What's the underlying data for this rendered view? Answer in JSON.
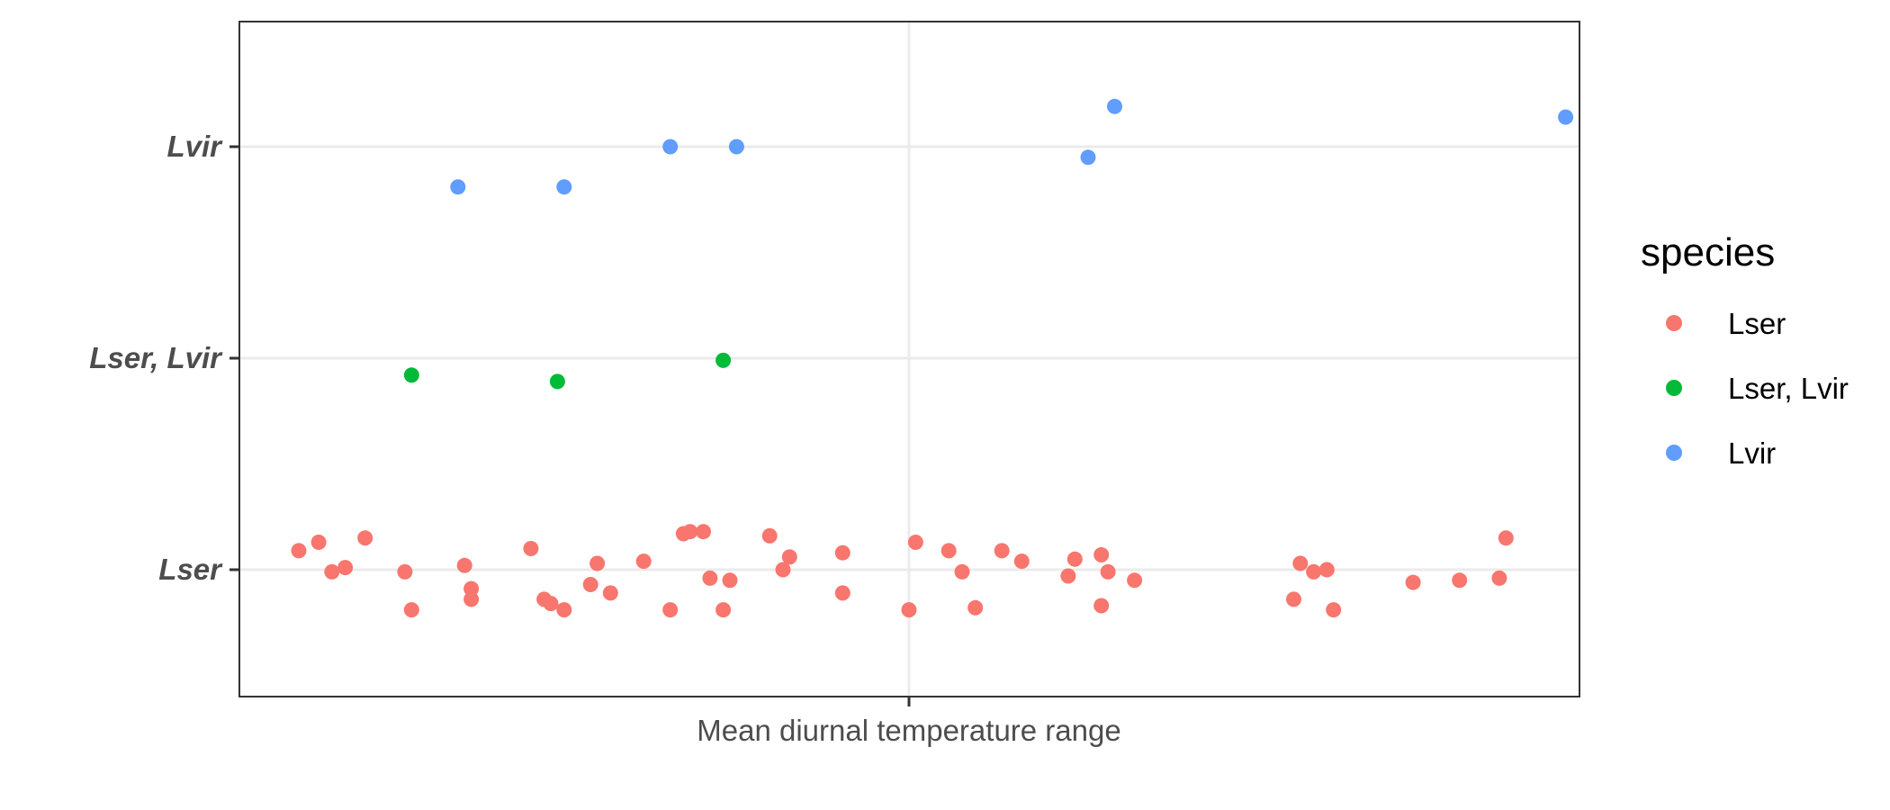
{
  "chart_data": {
    "type": "scatter",
    "title": "",
    "xlabel": "Mean diurnal temperature range",
    "ylabel": "",
    "x_tick_labels": [],
    "categories": [
      "Lser",
      "Lser, Lvir",
      "Lvir"
    ],
    "grid": true,
    "xlim": [
      -1.5,
      1.5
    ],
    "legend": {
      "title": "species",
      "placement": "right",
      "entries": [
        "Lser",
        "Lser, Lvir",
        "Lvir"
      ]
    },
    "series": [
      {
        "name": "Lser",
        "color": "#F8766D",
        "points": [
          {
            "x": -0.92,
            "y": 0.09
          },
          {
            "x": -0.89,
            "y": 0.13
          },
          {
            "x": -0.87,
            "y": -0.01
          },
          {
            "x": -0.85,
            "y": 0.01
          },
          {
            "x": -0.82,
            "y": 0.15
          },
          {
            "x": -0.76,
            "y": -0.01
          },
          {
            "x": -0.75,
            "y": -0.19
          },
          {
            "x": -0.67,
            "y": 0.02
          },
          {
            "x": -0.66,
            "y": -0.14
          },
          {
            "x": -0.66,
            "y": -0.09
          },
          {
            "x": -0.57,
            "y": 0.1
          },
          {
            "x": -0.55,
            "y": -0.14
          },
          {
            "x": -0.54,
            "y": -0.16
          },
          {
            "x": -0.52,
            "y": -0.19
          },
          {
            "x": -0.48,
            "y": -0.07
          },
          {
            "x": -0.47,
            "y": 0.03
          },
          {
            "x": -0.45,
            "y": -0.11
          },
          {
            "x": -0.4,
            "y": 0.04
          },
          {
            "x": -0.36,
            "y": -0.19
          },
          {
            "x": -0.34,
            "y": 0.17
          },
          {
            "x": -0.33,
            "y": 0.18
          },
          {
            "x": -0.31,
            "y": 0.18
          },
          {
            "x": -0.3,
            "y": -0.04
          },
          {
            "x": -0.28,
            "y": -0.19
          },
          {
            "x": -0.27,
            "y": -0.05
          },
          {
            "x": -0.21,
            "y": 0.16
          },
          {
            "x": -0.19,
            "y": 0.0
          },
          {
            "x": -0.18,
            "y": 0.06
          },
          {
            "x": -0.1,
            "y": -0.11
          },
          {
            "x": -0.1,
            "y": 0.08
          },
          {
            "x": 0.0,
            "y": -0.19
          },
          {
            "x": 0.01,
            "y": 0.13
          },
          {
            "x": 0.06,
            "y": 0.09
          },
          {
            "x": 0.08,
            "y": -0.01
          },
          {
            "x": 0.1,
            "y": -0.18
          },
          {
            "x": 0.14,
            "y": 0.09
          },
          {
            "x": 0.17,
            "y": 0.04
          },
          {
            "x": 0.24,
            "y": -0.03
          },
          {
            "x": 0.25,
            "y": 0.05
          },
          {
            "x": 0.29,
            "y": 0.07
          },
          {
            "x": 0.29,
            "y": -0.17
          },
          {
            "x": 0.3,
            "y": -0.01
          },
          {
            "x": 0.34,
            "y": -0.05
          },
          {
            "x": 0.58,
            "y": -0.14
          },
          {
            "x": 0.59,
            "y": 0.03
          },
          {
            "x": 0.61,
            "y": -0.01
          },
          {
            "x": 0.63,
            "y": 0.0
          },
          {
            "x": 0.64,
            "y": -0.19
          },
          {
            "x": 0.76,
            "y": -0.06
          },
          {
            "x": 0.83,
            "y": -0.05
          },
          {
            "x": 0.89,
            "y": -0.04
          },
          {
            "x": 0.9,
            "y": 0.15
          }
        ]
      },
      {
        "name": "Lser, Lvir",
        "color": "#00BA38",
        "points": [
          {
            "x": -0.75,
            "y": -0.08
          },
          {
            "x": -0.53,
            "y": -0.11
          },
          {
            "x": -0.28,
            "y": -0.01
          }
        ]
      },
      {
        "name": "Lvir",
        "color": "#619CFF",
        "points": [
          {
            "x": -0.68,
            "y": -0.19
          },
          {
            "x": -0.52,
            "y": -0.19
          },
          {
            "x": -0.36,
            "y": 0.0
          },
          {
            "x": -0.26,
            "y": 0.0
          },
          {
            "x": 0.27,
            "y": -0.05
          },
          {
            "x": 0.31,
            "y": 0.19
          },
          {
            "x": 0.99,
            "y": 0.14
          }
        ]
      }
    ]
  }
}
